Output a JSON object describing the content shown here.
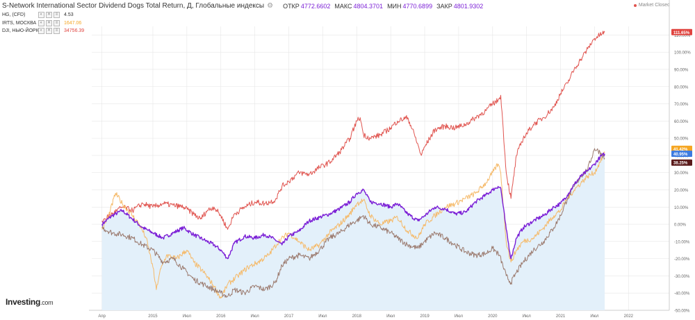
{
  "header": {
    "title": "S-Network International Sector Dividend Dogs Total Return, Д, Глобальные индексы",
    "gear": "⚙",
    "ohlc": [
      {
        "label": "ОТКР",
        "value": "4772.6602"
      },
      {
        "label": "МАКС",
        "value": "4804.3701"
      },
      {
        "label": "МИН",
        "value": "4770.6899"
      },
      {
        "label": "ЗАКР",
        "value": "4801.9302"
      }
    ]
  },
  "legend": [
    {
      "name": "HG, (CFD)",
      "value": "4.53",
      "color": "#9b7a6e"
    },
    {
      "name": "IRTS, МОСКВА",
      "value": "1647.06",
      "color": "#f5a623"
    },
    {
      "name": "DJI, НЬЮ-ЙОРК",
      "value": "34756.39",
      "color": "#e0443f"
    }
  ],
  "controls": [
    "◐",
    "✕",
    "≡"
  ],
  "market_status": "Market Closed",
  "logo": {
    "main": "Investing",
    "suffix": ".com"
  },
  "colors": {
    "main": "#7b1fd6",
    "hg": "#9b7a6e",
    "irts": "#f5ba6a",
    "dji": "#e0544f",
    "area": "#e3f0fa",
    "grid": "#e6e6e6"
  },
  "chart_data": {
    "type": "line",
    "ylabel": "%",
    "ylim": [
      -50,
      115
    ],
    "y_ticks": [
      "110.00%",
      "100.00%",
      "90.00%",
      "80.00%",
      "70.00%",
      "60.00%",
      "50.00%",
      "40.00%",
      "30.00%",
      "20.00%",
      "10.00%",
      "0.00%",
      "-10.00%",
      "-20.00%",
      "-30.00%",
      "-40.00%",
      "-50.00%"
    ],
    "y_tick_values": [
      110,
      100,
      90,
      80,
      70,
      60,
      50,
      40,
      30,
      20,
      10,
      0,
      -10,
      -20,
      -30,
      -40,
      -50
    ],
    "x_ticks": [
      {
        "label": "Апр",
        "t": 2014.25
      },
      {
        "label": "2015",
        "t": 2015.0
      },
      {
        "label": "Июл",
        "t": 2015.5
      },
      {
        "label": "2016",
        "t": 2016.0
      },
      {
        "label": "Июл",
        "t": 2016.5
      },
      {
        "label": "2017",
        "t": 2017.0
      },
      {
        "label": "Июл",
        "t": 2017.5
      },
      {
        "label": "2018",
        "t": 2018.0
      },
      {
        "label": "Июл",
        "t": 2018.5
      },
      {
        "label": "2019",
        "t": 2019.0
      },
      {
        "label": "Июл",
        "t": 2019.5
      },
      {
        "label": "2020",
        "t": 2020.0
      },
      {
        "label": "Июл",
        "t": 2020.5
      },
      {
        "label": "2021",
        "t": 2021.0
      },
      {
        "label": "Июл",
        "t": 2021.5
      },
      {
        "label": "2022",
        "t": 2022.0
      }
    ],
    "x_range": [
      2014.1,
      2022.6
    ],
    "last_labels": [
      {
        "text": "111.65%",
        "value": 111.65,
        "color": "#e0443f"
      },
      {
        "text": "41.42%",
        "value": 41.42,
        "color": "#f5a623"
      },
      {
        "text": "40.95%",
        "value": 40.95,
        "color": "#3d7be0"
      },
      {
        "text": "38.25%",
        "value": 38.25,
        "color": "#5a1a1a"
      }
    ],
    "series": [
      {
        "name": "S-Network International Sector Dividend Dogs Total Return",
        "color": "#7b1fd6",
        "area": true,
        "points": [
          [
            2014.25,
            0
          ],
          [
            2014.4,
            5
          ],
          [
            2014.55,
            8
          ],
          [
            2014.7,
            3
          ],
          [
            2014.85,
            -2
          ],
          [
            2015.0,
            -5
          ],
          [
            2015.15,
            -8
          ],
          [
            2015.3,
            -5
          ],
          [
            2015.45,
            -2
          ],
          [
            2015.6,
            -6
          ],
          [
            2015.75,
            -9
          ],
          [
            2015.9,
            -12
          ],
          [
            2016.0,
            -15
          ],
          [
            2016.1,
            -20
          ],
          [
            2016.2,
            -11
          ],
          [
            2016.35,
            -7
          ],
          [
            2016.5,
            -8
          ],
          [
            2016.65,
            -6
          ],
          [
            2016.8,
            -9
          ],
          [
            2016.9,
            -12
          ],
          [
            2017.0,
            -7
          ],
          [
            2017.15,
            -4
          ],
          [
            2017.3,
            2
          ],
          [
            2017.45,
            4
          ],
          [
            2017.6,
            6
          ],
          [
            2017.75,
            9
          ],
          [
            2017.9,
            13
          ],
          [
            2018.0,
            18
          ],
          [
            2018.1,
            20
          ],
          [
            2018.2,
            13
          ],
          [
            2018.35,
            12
          ],
          [
            2018.5,
            10
          ],
          [
            2018.6,
            12
          ],
          [
            2018.75,
            6
          ],
          [
            2018.9,
            2
          ],
          [
            2019.0,
            5
          ],
          [
            2019.15,
            10
          ],
          [
            2019.3,
            9
          ],
          [
            2019.45,
            6
          ],
          [
            2019.6,
            7
          ],
          [
            2019.75,
            13
          ],
          [
            2019.9,
            17
          ],
          [
            2020.0,
            20
          ],
          [
            2020.08,
            22
          ],
          [
            2020.12,
            21
          ],
          [
            2020.2,
            -3
          ],
          [
            2020.27,
            -20
          ],
          [
            2020.35,
            -8
          ],
          [
            2020.45,
            -2
          ],
          [
            2020.6,
            2
          ],
          [
            2020.75,
            5
          ],
          [
            2020.9,
            10
          ],
          [
            2021.0,
            12
          ],
          [
            2021.1,
            17
          ],
          [
            2021.2,
            23
          ],
          [
            2021.3,
            28
          ],
          [
            2021.4,
            31
          ],
          [
            2021.5,
            35
          ],
          [
            2021.58,
            39
          ],
          [
            2021.65,
            40.95
          ]
        ]
      },
      {
        "name": "HG, (CFD)",
        "color": "#9b7a6e",
        "points": [
          [
            2014.25,
            -2
          ],
          [
            2014.4,
            -5
          ],
          [
            2014.55,
            -6
          ],
          [
            2014.7,
            -8
          ],
          [
            2014.85,
            -12
          ],
          [
            2015.0,
            -15
          ],
          [
            2015.15,
            -22
          ],
          [
            2015.3,
            -20
          ],
          [
            2015.45,
            -26
          ],
          [
            2015.6,
            -32
          ],
          [
            2015.75,
            -35
          ],
          [
            2015.9,
            -38
          ],
          [
            2016.0,
            -40
          ],
          [
            2016.1,
            -42
          ],
          [
            2016.2,
            -38
          ],
          [
            2016.35,
            -40
          ],
          [
            2016.5,
            -36
          ],
          [
            2016.65,
            -38
          ],
          [
            2016.8,
            -34
          ],
          [
            2016.9,
            -24
          ],
          [
            2017.0,
            -20
          ],
          [
            2017.15,
            -18
          ],
          [
            2017.3,
            -20
          ],
          [
            2017.45,
            -15
          ],
          [
            2017.6,
            -8
          ],
          [
            2017.75,
            -5
          ],
          [
            2017.9,
            0
          ],
          [
            2018.0,
            2
          ],
          [
            2018.1,
            5
          ],
          [
            2018.2,
            0
          ],
          [
            2018.35,
            -2
          ],
          [
            2018.5,
            -5
          ],
          [
            2018.6,
            -8
          ],
          [
            2018.75,
            -12
          ],
          [
            2018.9,
            -14
          ],
          [
            2019.0,
            -10
          ],
          [
            2019.15,
            -5
          ],
          [
            2019.3,
            -8
          ],
          [
            2019.45,
            -12
          ],
          [
            2019.6,
            -16
          ],
          [
            2019.75,
            -18
          ],
          [
            2019.9,
            -17
          ],
          [
            2020.0,
            -14
          ],
          [
            2020.1,
            -18
          ],
          [
            2020.2,
            -30
          ],
          [
            2020.27,
            -34
          ],
          [
            2020.35,
            -28
          ],
          [
            2020.45,
            -22
          ],
          [
            2020.6,
            -15
          ],
          [
            2020.75,
            -10
          ],
          [
            2020.9,
            -2
          ],
          [
            2021.0,
            5
          ],
          [
            2021.1,
            15
          ],
          [
            2021.2,
            22
          ],
          [
            2021.3,
            28
          ],
          [
            2021.4,
            32
          ],
          [
            2021.5,
            44
          ],
          [
            2021.58,
            42
          ],
          [
            2021.65,
            38.25
          ]
        ]
      },
      {
        "name": "IRTS, МОСКВА",
        "color": "#f5ba6a",
        "points": [
          [
            2014.25,
            -3
          ],
          [
            2014.35,
            5
          ],
          [
            2014.45,
            18
          ],
          [
            2014.55,
            12
          ],
          [
            2014.7,
            5
          ],
          [
            2014.8,
            0
          ],
          [
            2014.9,
            -8
          ],
          [
            2015.0,
            -25
          ],
          [
            2015.05,
            -38
          ],
          [
            2015.1,
            -28
          ],
          [
            2015.2,
            -18
          ],
          [
            2015.35,
            -20
          ],
          [
            2015.5,
            -15
          ],
          [
            2015.6,
            -22
          ],
          [
            2015.75,
            -28
          ],
          [
            2015.9,
            -36
          ],
          [
            2016.0,
            -43
          ],
          [
            2016.1,
            -35
          ],
          [
            2016.25,
            -30
          ],
          [
            2016.4,
            -25
          ],
          [
            2016.55,
            -22
          ],
          [
            2016.7,
            -18
          ],
          [
            2016.85,
            -10
          ],
          [
            2017.0,
            -5
          ],
          [
            2017.15,
            -10
          ],
          [
            2017.3,
            -15
          ],
          [
            2017.45,
            -12
          ],
          [
            2017.6,
            -5
          ],
          [
            2017.75,
            0
          ],
          [
            2017.9,
            6
          ],
          [
            2018.0,
            12
          ],
          [
            2018.1,
            14
          ],
          [
            2018.2,
            5
          ],
          [
            2018.35,
            0
          ],
          [
            2018.5,
            2
          ],
          [
            2018.6,
            4
          ],
          [
            2018.75,
            -4
          ],
          [
            2018.9,
            -8
          ],
          [
            2019.0,
            0
          ],
          [
            2019.15,
            5
          ],
          [
            2019.3,
            10
          ],
          [
            2019.45,
            12
          ],
          [
            2019.6,
            15
          ],
          [
            2019.75,
            18
          ],
          [
            2019.9,
            24
          ],
          [
            2020.0,
            30
          ],
          [
            2020.08,
            35
          ],
          [
            2020.12,
            30
          ],
          [
            2020.2,
            -10
          ],
          [
            2020.27,
            -22
          ],
          [
            2020.35,
            -15
          ],
          [
            2020.45,
            -10
          ],
          [
            2020.6,
            -8
          ],
          [
            2020.75,
            -2
          ],
          [
            2020.9,
            5
          ],
          [
            2021.0,
            8
          ],
          [
            2021.1,
            15
          ],
          [
            2021.2,
            20
          ],
          [
            2021.3,
            24
          ],
          [
            2021.4,
            28
          ],
          [
            2021.5,
            30
          ],
          [
            2021.58,
            36
          ],
          [
            2021.65,
            41.42
          ]
        ]
      },
      {
        "name": "DJI, НЬЮ-ЙОРК",
        "color": "#e0544f",
        "points": [
          [
            2014.25,
            2
          ],
          [
            2014.4,
            6
          ],
          [
            2014.55,
            10
          ],
          [
            2014.7,
            8
          ],
          [
            2014.85,
            12
          ],
          [
            2015.0,
            10
          ],
          [
            2015.15,
            12
          ],
          [
            2015.3,
            11
          ],
          [
            2015.45,
            10
          ],
          [
            2015.6,
            6
          ],
          [
            2015.7,
            3
          ],
          [
            2015.8,
            8
          ],
          [
            2015.9,
            10
          ],
          [
            2016.0,
            5
          ],
          [
            2016.1,
            -3
          ],
          [
            2016.2,
            6
          ],
          [
            2016.35,
            10
          ],
          [
            2016.5,
            13
          ],
          [
            2016.65,
            12
          ],
          [
            2016.8,
            14
          ],
          [
            2016.9,
            22
          ],
          [
            2017.0,
            25
          ],
          [
            2017.15,
            30
          ],
          [
            2017.3,
            29
          ],
          [
            2017.45,
            33
          ],
          [
            2017.6,
            36
          ],
          [
            2017.75,
            42
          ],
          [
            2017.9,
            50
          ],
          [
            2018.0,
            60
          ],
          [
            2018.05,
            62
          ],
          [
            2018.1,
            52
          ],
          [
            2018.2,
            50
          ],
          [
            2018.35,
            52
          ],
          [
            2018.5,
            56
          ],
          [
            2018.6,
            60
          ],
          [
            2018.75,
            62
          ],
          [
            2018.85,
            52
          ],
          [
            2018.95,
            40
          ],
          [
            2019.0,
            45
          ],
          [
            2019.15,
            55
          ],
          [
            2019.3,
            57
          ],
          [
            2019.45,
            56
          ],
          [
            2019.6,
            58
          ],
          [
            2019.75,
            62
          ],
          [
            2019.9,
            66
          ],
          [
            2020.0,
            70
          ],
          [
            2020.08,
            72
          ],
          [
            2020.12,
            75
          ],
          [
            2020.2,
            30
          ],
          [
            2020.27,
            15
          ],
          [
            2020.35,
            40
          ],
          [
            2020.45,
            50
          ],
          [
            2020.6,
            58
          ],
          [
            2020.75,
            62
          ],
          [
            2020.9,
            68
          ],
          [
            2021.0,
            76
          ],
          [
            2021.1,
            82
          ],
          [
            2021.2,
            90
          ],
          [
            2021.3,
            96
          ],
          [
            2021.4,
            102
          ],
          [
            2021.5,
            108
          ],
          [
            2021.58,
            110
          ],
          [
            2021.65,
            111.65
          ]
        ]
      }
    ]
  }
}
